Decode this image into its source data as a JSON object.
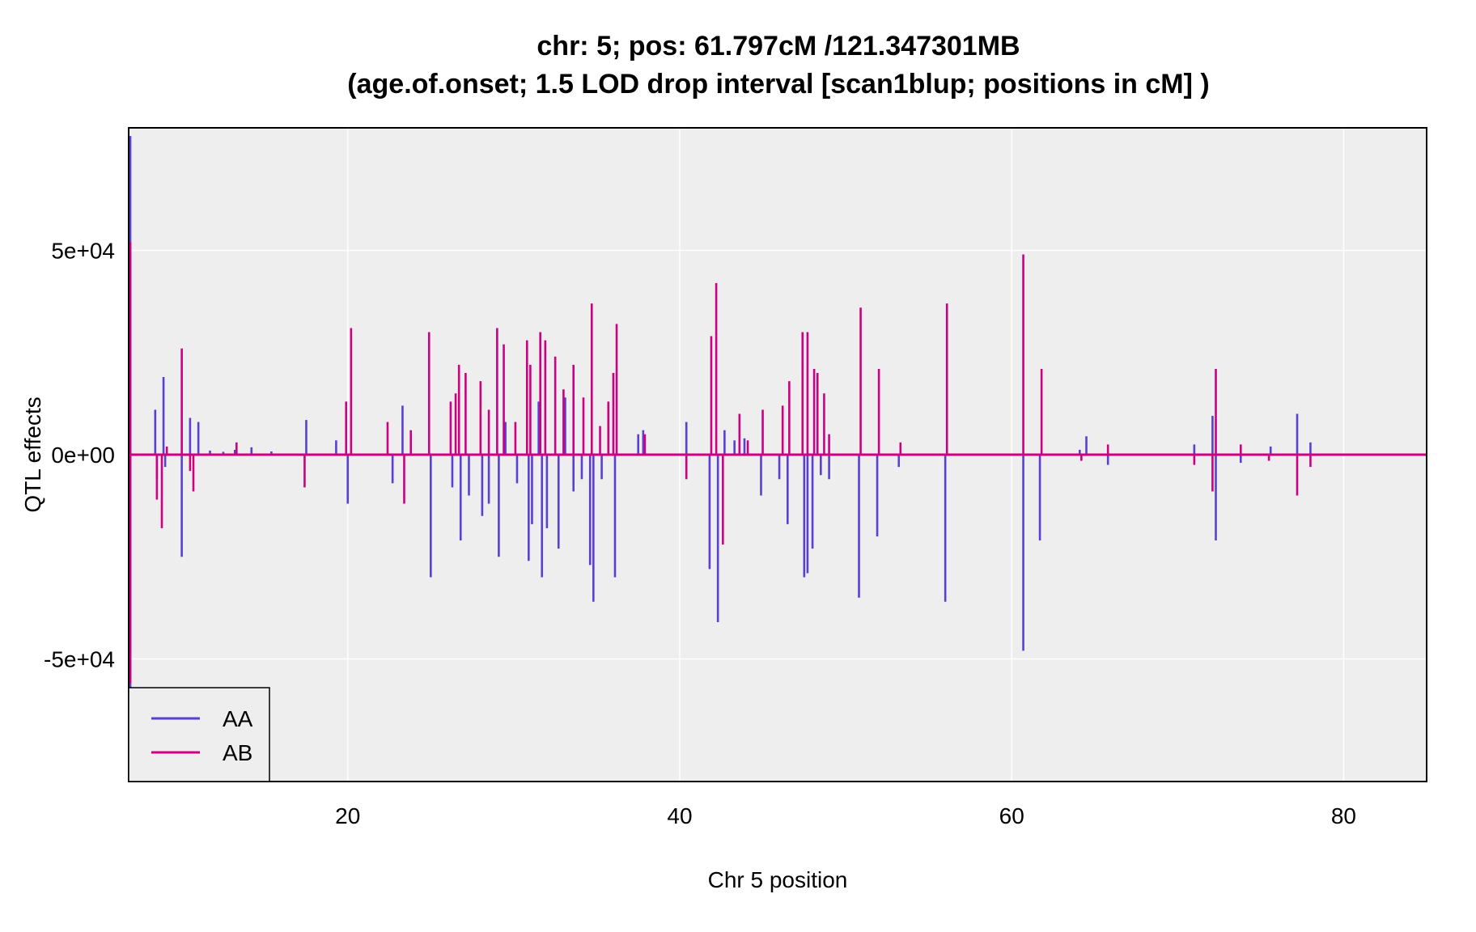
{
  "chart_data": {
    "type": "line",
    "title_lines": [
      "chr: 5; pos: 61.797cM /121.347301MB",
      "(age.of.onset; 1.5 LOD drop interval [scan1blup; positions in cM] )"
    ],
    "xlabel": "Chr 5 position",
    "ylabel": "QTL effects",
    "xlim": [
      6.8,
      85
    ],
    "ylim": [
      -80000,
      80000
    ],
    "x_ticks": [
      {
        "value": 20,
        "label": "20"
      },
      {
        "value": 40,
        "label": "40"
      },
      {
        "value": 60,
        "label": "60"
      },
      {
        "value": 80,
        "label": "80"
      }
    ],
    "y_ticks": [
      {
        "value": 50000,
        "label": "5e+04"
      },
      {
        "value": 0,
        "label": "0e+00"
      },
      {
        "value": -50000,
        "label": "-5e+04"
      }
    ],
    "grid": true,
    "legend_position": "bottom-left",
    "background_color": "#eeeeee",
    "series": [
      {
        "name": "AA",
        "color": "#5b3fd0",
        "spikes": [
          [
            6.9,
            78000
          ],
          [
            6.9,
            -58000
          ],
          [
            8.4,
            11000
          ],
          [
            8.5,
            -6000
          ],
          [
            8.9,
            19000
          ],
          [
            9.0,
            -3000
          ],
          [
            10.0,
            -25000
          ],
          [
            10.5,
            9000
          ],
          [
            11.0,
            8000
          ],
          [
            11.7,
            1000
          ],
          [
            12.5,
            700
          ],
          [
            13.2,
            1200
          ],
          [
            14.2,
            1800
          ],
          [
            15.4,
            800
          ],
          [
            17.5,
            8500
          ],
          [
            19.3,
            3500
          ],
          [
            20.0,
            -12000
          ],
          [
            22.7,
            -7000
          ],
          [
            23.3,
            12000
          ],
          [
            25.0,
            -30000
          ],
          [
            26.3,
            -8000
          ],
          [
            26.8,
            -21000
          ],
          [
            27.3,
            -10000
          ],
          [
            28.1,
            -15000
          ],
          [
            28.5,
            -12000
          ],
          [
            29.1,
            -25000
          ],
          [
            29.5,
            8000
          ],
          [
            30.2,
            -7000
          ],
          [
            30.9,
            -26000
          ],
          [
            31.1,
            -17000
          ],
          [
            31.5,
            13000
          ],
          [
            31.7,
            -30000
          ],
          [
            32.0,
            -18000
          ],
          [
            32.7,
            -23000
          ],
          [
            33.1,
            14000
          ],
          [
            33.6,
            -9000
          ],
          [
            34.1,
            -6000
          ],
          [
            34.6,
            -27000
          ],
          [
            34.8,
            -36000
          ],
          [
            35.3,
            -6000
          ],
          [
            35.7,
            7000
          ],
          [
            36.1,
            -30000
          ],
          [
            37.5,
            5000
          ],
          [
            37.8,
            6000
          ],
          [
            40.4,
            8000
          ],
          [
            41.8,
            -28000
          ],
          [
            42.3,
            -41000
          ],
          [
            42.7,
            6000
          ],
          [
            43.3,
            3500
          ],
          [
            43.9,
            4000
          ],
          [
            44.9,
            -10000
          ],
          [
            46.0,
            -6000
          ],
          [
            46.5,
            -17000
          ],
          [
            47.5,
            -30000
          ],
          [
            47.7,
            -29000
          ],
          [
            48.0,
            -23000
          ],
          [
            48.5,
            -5000
          ],
          [
            49.0,
            -6000
          ],
          [
            50.8,
            -35000
          ],
          [
            51.9,
            -20000
          ],
          [
            53.2,
            -3000
          ],
          [
            56.0,
            -36000
          ],
          [
            60.7,
            -48000
          ],
          [
            61.7,
            -21000
          ],
          [
            64.1,
            1200
          ],
          [
            64.5,
            4500
          ],
          [
            65.8,
            -2500
          ],
          [
            71.0,
            2500
          ],
          [
            72.1,
            9500
          ],
          [
            72.3,
            -21000
          ],
          [
            73.8,
            -2000
          ],
          [
            75.6,
            2000
          ],
          [
            77.2,
            10000
          ],
          [
            78.0,
            3000
          ]
        ]
      },
      {
        "name": "AB",
        "color": "#cc0080",
        "spikes": [
          [
            6.9,
            52000
          ],
          [
            6.9,
            -56000
          ],
          [
            8.5,
            -11000
          ],
          [
            8.8,
            -18000
          ],
          [
            9.1,
            2000
          ],
          [
            10.0,
            26000
          ],
          [
            10.5,
            -4000
          ],
          [
            10.7,
            -9000
          ],
          [
            13.3,
            3000
          ],
          [
            17.4,
            -8000
          ],
          [
            19.9,
            13000
          ],
          [
            20.2,
            31000
          ],
          [
            22.4,
            8000
          ],
          [
            23.4,
            -12000
          ],
          [
            23.8,
            6000
          ],
          [
            24.9,
            30000
          ],
          [
            26.2,
            13000
          ],
          [
            26.5,
            15000
          ],
          [
            26.7,
            22000
          ],
          [
            27.1,
            20000
          ],
          [
            28.0,
            18000
          ],
          [
            28.5,
            11000
          ],
          [
            29.0,
            31000
          ],
          [
            29.4,
            27000
          ],
          [
            30.1,
            8000
          ],
          [
            30.8,
            28000
          ],
          [
            31.0,
            22000
          ],
          [
            31.6,
            30000
          ],
          [
            31.9,
            28000
          ],
          [
            32.5,
            24000
          ],
          [
            33.0,
            16000
          ],
          [
            33.6,
            22000
          ],
          [
            34.2,
            14000
          ],
          [
            34.7,
            37000
          ],
          [
            35.2,
            7000
          ],
          [
            35.7,
            13000
          ],
          [
            36.0,
            20000
          ],
          [
            36.2,
            32000
          ],
          [
            37.9,
            5000
          ],
          [
            40.4,
            -6000
          ],
          [
            41.9,
            29000
          ],
          [
            42.2,
            42000
          ],
          [
            42.6,
            -22000
          ],
          [
            43.6,
            10000
          ],
          [
            44.1,
            3500
          ],
          [
            45.0,
            11000
          ],
          [
            46.2,
            12000
          ],
          [
            46.6,
            18000
          ],
          [
            47.4,
            30000
          ],
          [
            47.7,
            30000
          ],
          [
            48.1,
            21000
          ],
          [
            48.3,
            20000
          ],
          [
            48.7,
            15000
          ],
          [
            49.0,
            5000
          ],
          [
            50.9,
            36000
          ],
          [
            52.0,
            21000
          ],
          [
            53.3,
            3000
          ],
          [
            56.1,
            37000
          ],
          [
            60.7,
            49000
          ],
          [
            61.8,
            21000
          ],
          [
            64.2,
            -1500
          ],
          [
            65.8,
            2500
          ],
          [
            71.0,
            -2500
          ],
          [
            72.1,
            -9000
          ],
          [
            72.3,
            21000
          ],
          [
            73.8,
            2500
          ],
          [
            75.5,
            -1500
          ],
          [
            77.2,
            -10000
          ],
          [
            78.0,
            -3000
          ]
        ]
      }
    ]
  }
}
